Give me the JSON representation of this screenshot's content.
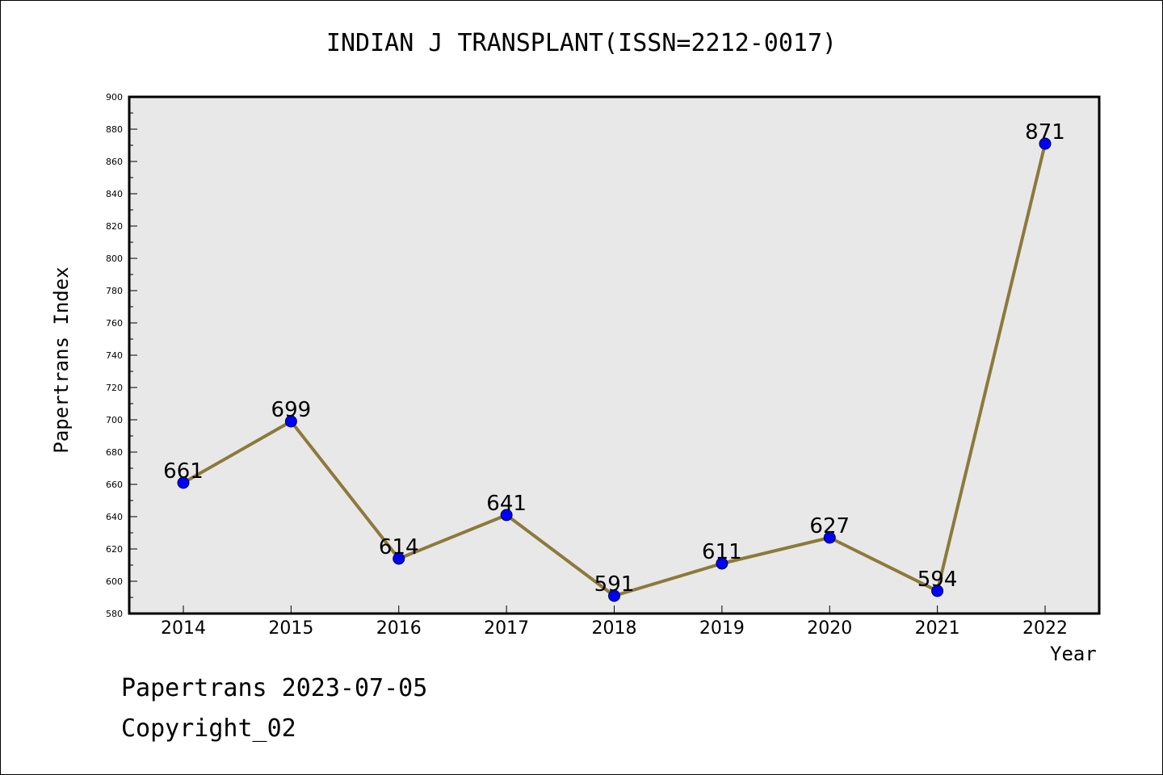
{
  "chart_data": {
    "type": "line",
    "title": "INDIAN J TRANSPLANT(ISSN=2212-0017)",
    "xlabel": "Year",
    "ylabel": "Papertrans Index",
    "categories": [
      "2014",
      "2015",
      "2016",
      "2017",
      "2018",
      "2019",
      "2020",
      "2021",
      "2022"
    ],
    "series": [
      {
        "values": [
          661,
          699,
          614,
          641,
          591,
          611,
          627,
          594,
          871
        ]
      }
    ],
    "ylim": [
      580,
      900
    ],
    "y_ticks": [
      "580",
      "600",
      "620",
      "640",
      "660",
      "680",
      "700",
      "720",
      "740",
      "760",
      "780",
      "800",
      "820",
      "840",
      "860",
      "880",
      "900"
    ],
    "data_labels": [
      "661",
      "699",
      "614",
      "641",
      "591",
      "611",
      "627",
      "594",
      "871"
    ],
    "grid": false,
    "colors": {
      "line": "#8b7a3a",
      "marker": "#0000ff",
      "plot_background": "#e8e8e8"
    }
  },
  "footer": {
    "date_text": "Papertrans 2023-07-05",
    "copyright_text": "Copyright_02"
  }
}
